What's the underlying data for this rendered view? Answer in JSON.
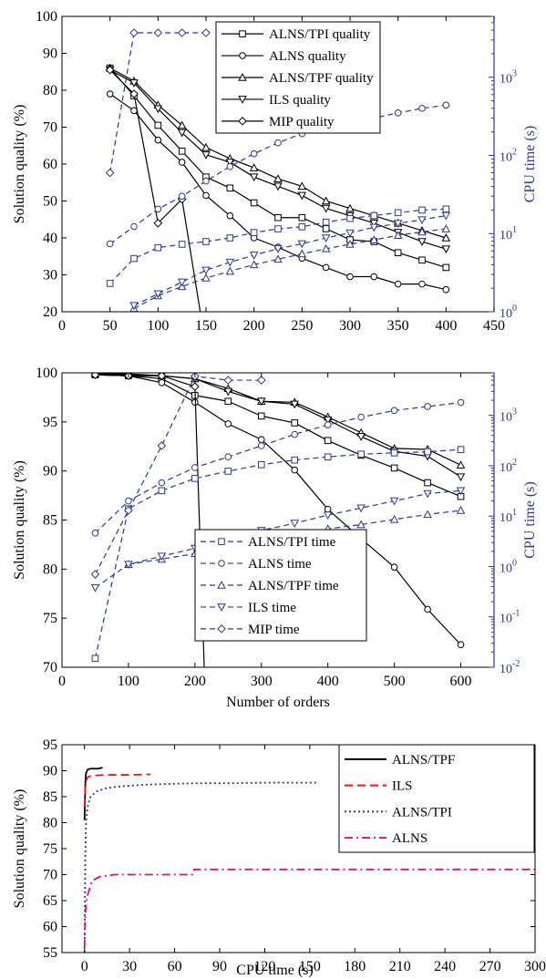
{
  "chart_data": [
    {
      "type": "line",
      "xlim": [
        0,
        450
      ],
      "xticks": [
        0,
        50,
        100,
        150,
        200,
        250,
        300,
        350,
        400,
        450
      ],
      "ylabel": "Solution quality (%)",
      "ylim": [
        20,
        100
      ],
      "yticks": [
        20,
        30,
        40,
        50,
        60,
        70,
        80,
        90,
        100
      ],
      "y2label": "CPU time (s)",
      "y2scale": "log",
      "y2lim": [
        1,
        6000
      ],
      "y2ticks": [
        {
          "v": 1,
          "b": "10",
          "e": "0"
        },
        {
          "v": 10,
          "b": "10",
          "e": "1"
        },
        {
          "v": 100,
          "b": "10",
          "e": "2"
        },
        {
          "v": 1000,
          "b": "10",
          "e": "3"
        }
      ],
      "legend": {
        "position": "top-center",
        "entries": [
          "ALNS/TPI quality",
          "ALNS quality",
          "ALNS/TPF quality",
          "ILS quality",
          "MIP quality"
        ]
      },
      "colors": {
        "quality": "#000000",
        "time": "#2b3990"
      },
      "x": [
        50,
        75,
        100,
        125,
        150,
        175,
        200,
        225,
        250,
        275,
        300,
        325,
        350,
        375,
        400
      ],
      "series": [
        {
          "name": "ALNS/TPI quality",
          "kind": "quality",
          "marker": "square",
          "values": [
            86,
            78.5,
            70.5,
            63.5,
            56.5,
            53.5,
            49.5,
            45.5,
            45.5,
            42.5,
            39.5,
            39,
            36,
            34,
            32
          ]
        },
        {
          "name": "ALNS quality",
          "kind": "quality",
          "marker": "circle",
          "values": [
            79,
            74.5,
            66.5,
            60.5,
            51.5,
            46,
            40,
            37.5,
            34.5,
            32,
            29.5,
            29.5,
            27.5,
            27.5,
            26
          ]
        },
        {
          "name": "ALNS/TPF quality",
          "kind": "quality",
          "marker": "triangle-up",
          "values": [
            86,
            82.5,
            76,
            70.5,
            64.5,
            61.5,
            59,
            56,
            54,
            50,
            48,
            46,
            44,
            42,
            40
          ]
        },
        {
          "name": "ILS quality",
          "kind": "quality",
          "marker": "triangle-down",
          "values": [
            85.5,
            82,
            75,
            68.5,
            62.5,
            60.5,
            56.5,
            54,
            51.5,
            48,
            46,
            44,
            41.5,
            39,
            37
          ]
        },
        {
          "name": "MIP quality",
          "kind": "quality",
          "marker": "diamond",
          "x": [
            50,
            75,
            100,
            125,
            144
          ],
          "values": [
            85.5,
            79,
            44,
            50.5,
            20
          ]
        },
        {
          "kind": "time",
          "marker": "square",
          "x": [
            50,
            75,
            100,
            125,
            150,
            175,
            200,
            225,
            250,
            275,
            300,
            325,
            350,
            375,
            400
          ],
          "values": [
            2.3,
            4.8,
            6.6,
            7.3,
            7.9,
            8.8,
            10.3,
            11.5,
            12.2,
            14,
            15.6,
            17,
            18.5,
            20,
            20.6
          ]
        },
        {
          "kind": "time",
          "marker": "circle",
          "x": [
            50,
            75,
            100,
            125,
            150,
            175,
            200,
            225,
            250,
            275,
            300,
            325,
            350,
            375,
            400
          ],
          "values": [
            7.4,
            12.3,
            20.6,
            30,
            47,
            72,
            105,
            145,
            190,
            215,
            255,
            300,
            350,
            400,
            440
          ]
        },
        {
          "kind": "time",
          "marker": "triangle-up",
          "x": [
            75,
            100,
            125,
            150,
            175,
            200,
            225,
            250,
            275,
            300,
            325,
            350,
            375,
            400
          ],
          "values": [
            1.1,
            1.6,
            2.1,
            2.7,
            3.3,
            4.0,
            4.7,
            5.5,
            6.4,
            7.3,
            8.3,
            9.5,
            10.5,
            11.5
          ]
        },
        {
          "kind": "time",
          "marker": "triangle-down",
          "x": [
            75,
            100,
            125,
            150,
            175,
            200,
            225,
            250,
            275,
            300,
            325,
            350,
            375,
            400
          ],
          "values": [
            1.2,
            1.7,
            2.4,
            3.4,
            4.3,
            5.3,
            6.4,
            7.4,
            8.8,
            10.2,
            12,
            13.5,
            15,
            17
          ]
        },
        {
          "kind": "time",
          "marker": "diamond",
          "x": [
            50,
            75,
            100,
            125,
            150
          ],
          "values": [
            60,
            3700,
            3700,
            3700,
            3700
          ]
        }
      ]
    },
    {
      "type": "line",
      "xlabel": "Number of orders",
      "xlim": [
        0,
        650
      ],
      "xticks": [
        0,
        100,
        200,
        300,
        400,
        500,
        600
      ],
      "ylabel": "Solution quality (%)",
      "ylim": [
        70,
        100
      ],
      "yticks": [
        70,
        75,
        80,
        85,
        90,
        95,
        100
      ],
      "y2label": "CPU time (s)",
      "y2scale": "log",
      "y2lim": [
        0.01,
        7000
      ],
      "y2ticks": [
        {
          "v": 0.01,
          "b": "10",
          "e": "-2"
        },
        {
          "v": 0.1,
          "b": "10",
          "e": "-1"
        },
        {
          "v": 1,
          "b": "10",
          "e": "0"
        },
        {
          "v": 10,
          "b": "10",
          "e": "1"
        },
        {
          "v": 100,
          "b": "10",
          "e": "2"
        },
        {
          "v": 1000,
          "b": "10",
          "e": "3"
        }
      ],
      "legend": {
        "position": "bottom-center",
        "entries": [
          "ALNS/TPI time",
          "ALNS time",
          "ALNS/TPF time",
          "ILS time",
          "MIP time"
        ]
      },
      "colors": {
        "quality": "#000000",
        "time": "#2b3990"
      },
      "series": [
        {
          "kind": "quality",
          "marker": "square",
          "x": [
            50,
            100,
            150,
            200,
            250,
            300,
            350,
            400,
            450,
            500,
            550,
            600
          ],
          "values": [
            99.8,
            99.7,
            99.4,
            97.7,
            97.1,
            95.6,
            94.9,
            93.1,
            91.6,
            90.3,
            88.8,
            87.4
          ]
        },
        {
          "kind": "quality",
          "marker": "circle",
          "x": [
            50,
            100,
            150,
            200,
            250,
            300,
            350,
            400,
            450,
            500,
            550,
            600
          ],
          "values": [
            99.8,
            99.7,
            99.0,
            97.0,
            94.8,
            93.2,
            90.1,
            86.1,
            83.1,
            80.2,
            75.9,
            72.3
          ]
        },
        {
          "kind": "quality",
          "marker": "triangle-up",
          "x": [
            50,
            100,
            150,
            200,
            250,
            300,
            350,
            400,
            450,
            500,
            550,
            600
          ],
          "values": [
            99.9,
            99.9,
            99.7,
            99.4,
            98.4,
            97.1,
            97.0,
            95.5,
            93.9,
            92.3,
            92.2,
            90.6
          ]
        },
        {
          "kind": "quality",
          "marker": "triangle-down",
          "x": [
            50,
            100,
            150,
            200,
            250,
            300,
            350,
            400,
            450,
            500,
            550,
            600
          ],
          "values": [
            99.9,
            99.8,
            99.7,
            99.4,
            98.1,
            97.1,
            96.8,
            95.2,
            93.5,
            92.0,
            91.5,
            89.4
          ]
        },
        {
          "kind": "quality",
          "marker": "diamond",
          "x": [
            50,
            100,
            150,
            200,
            214
          ],
          "values": [
            99.8,
            99.7,
            99.7,
            98.6,
            70
          ]
        },
        {
          "name": "ALNS/TPI time",
          "kind": "time",
          "marker": "square",
          "x": [
            50,
            100,
            150,
            200,
            250,
            300,
            350,
            400,
            450,
            500,
            550,
            600
          ],
          "values": [
            0.015,
            14,
            32,
            56,
            78,
            105,
            130,
            150,
            170,
            180,
            190,
            210
          ]
        },
        {
          "name": "ALNS time",
          "kind": "time",
          "marker": "circle",
          "x": [
            50,
            100,
            150,
            200,
            250,
            300,
            350,
            400,
            450,
            500,
            550,
            600
          ],
          "values": [
            4.6,
            20,
            46,
            92,
            150,
            250,
            420,
            650,
            920,
            1250,
            1500,
            1800
          ]
        },
        {
          "name": "ALNS/TPF time",
          "kind": "time",
          "marker": "triangle-up",
          "x": [
            100,
            150,
            200,
            250,
            300,
            350,
            400,
            450,
            500,
            550,
            600
          ],
          "values": [
            1.1,
            1.4,
            1.8,
            2.6,
            3.5,
            4.3,
            5.6,
            6.8,
            8.6,
            10.8,
            13
          ]
        },
        {
          "name": "ILS time",
          "kind": "time",
          "marker": "triangle-down",
          "x": [
            50,
            100,
            150,
            200,
            250,
            300,
            350,
            400,
            450,
            500,
            550,
            600
          ],
          "values": [
            0.38,
            1.1,
            1.6,
            2.3,
            3.6,
            5.2,
            7.2,
            10.5,
            14.5,
            20,
            28,
            32
          ]
        },
        {
          "name": "MIP time",
          "kind": "time",
          "marker": "diamond",
          "x": [
            50,
            100,
            150,
            200,
            250,
            300
          ],
          "values": [
            0.7,
            13,
            250,
            6000,
            5000,
            5000
          ]
        }
      ]
    },
    {
      "type": "line",
      "xlabel": "CPU time (s)",
      "xlim": [
        -15,
        300
      ],
      "xticks": [
        0,
        30,
        60,
        90,
        120,
        150,
        180,
        210,
        240,
        270,
        300
      ],
      "ylabel": "Solution quality (%)",
      "ylim": [
        55,
        95
      ],
      "yticks": [
        55,
        60,
        65,
        70,
        75,
        80,
        85,
        90,
        95
      ],
      "legend": {
        "position": "top-right",
        "entries": [
          "ALNS/TPF",
          "ILS",
          "ALNS/TPI",
          "ALNS"
        ]
      },
      "series": [
        {
          "name": "ALNS/TPF",
          "color": "#000000",
          "dash": "solid",
          "x": [
            0,
            0.6,
            1,
            2,
            3,
            4,
            7,
            9,
            12
          ],
          "values": [
            80.5,
            88,
            89.5,
            90.2,
            90.3,
            90.4,
            90.4,
            90.4,
            90.6
          ]
        },
        {
          "name": "ILS",
          "color": "#e41a1c",
          "dash": "dashed",
          "x": [
            0,
            0.5,
            1,
            2,
            4,
            8,
            15,
            30,
            44
          ],
          "values": [
            83,
            86.5,
            88,
            88.7,
            89,
            89.1,
            89.2,
            89.2,
            89.3
          ]
        },
        {
          "name": "ALNS/TPI",
          "color": "#2b3990",
          "dash": "dotted",
          "x": [
            0,
            0.5,
            1,
            2,
            4,
            8,
            15,
            25,
            40,
            60,
            80,
            100,
            120,
            140,
            156
          ],
          "values": [
            55,
            73,
            80,
            83,
            85,
            86,
            86.7,
            87,
            87.3,
            87.5,
            87.6,
            87.6,
            87.7,
            87.7,
            87.7
          ]
        },
        {
          "name": "ALNS",
          "color": "#d4147a",
          "dash": "dashdot",
          "x": [
            0,
            0.5,
            1,
            2,
            5,
            10,
            20,
            40,
            72,
            73,
            150,
            300
          ],
          "values": [
            56,
            62,
            64,
            66,
            68.8,
            69.6,
            70,
            70,
            70,
            71,
            71,
            71
          ]
        }
      ]
    }
  ]
}
